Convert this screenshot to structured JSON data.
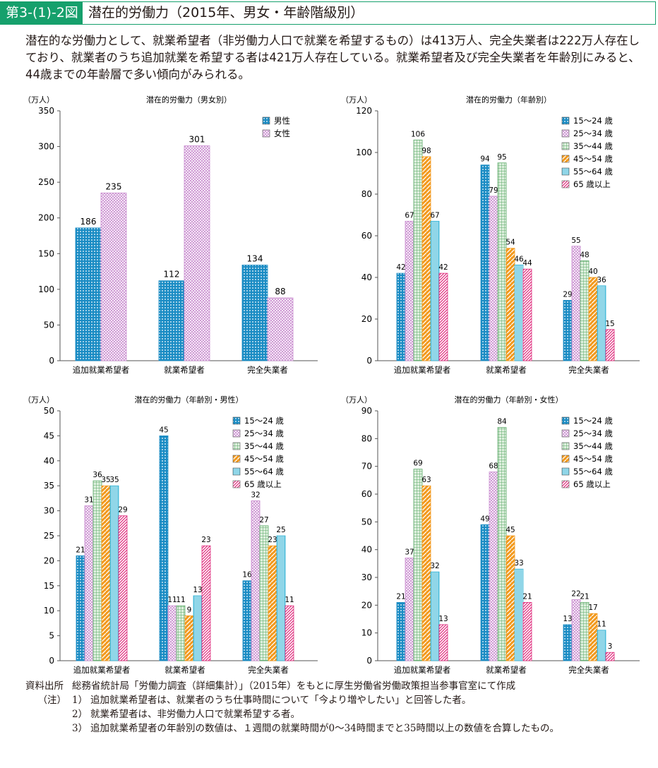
{
  "header": {
    "figure_number": "第3-(1)-2図",
    "title": "潜在的労働力（2015年、男女・年齢階級別）"
  },
  "summary": {
    "bullet": "○",
    "text": "潜在的な労働力として、就業希望者（非労働力人口で就業を希望するもの）は413万人、完全失業者は222万人存在しており、就業者のうち追加就業を希望する者は421万人存在している。就業希望者及び完全失業者を年齢別にみると、44歳までの年齢層で多い傾向がみられる。"
  },
  "chart_data": [
    {
      "type": "bar",
      "title": "潜在的労働力（男女別）",
      "ylabel": "（万人）",
      "ylim": [
        0,
        350
      ],
      "yticks": [
        0,
        50,
        100,
        150,
        200,
        250,
        300,
        350
      ],
      "categories": [
        "追加就業希望者",
        "就業希望者",
        "完全失業者"
      ],
      "series": [
        {
          "name": "男性",
          "values": [
            186,
            112,
            134
          ],
          "color": "#1b8cc4",
          "pattern": "dots"
        },
        {
          "name": "女性",
          "values": [
            235,
            301,
            88
          ],
          "color": "#c98bcf",
          "pattern": "cross"
        }
      ],
      "legend": "top-right"
    },
    {
      "type": "bar",
      "title": "潜在的労働力（年齢別）",
      "ylabel": "（万人）",
      "ylim": [
        0,
        120
      ],
      "yticks": [
        0,
        20,
        40,
        60,
        80,
        100,
        120
      ],
      "categories": [
        "追加就業希望者",
        "就業希望者",
        "完全失業者"
      ],
      "series": [
        {
          "name": "15～24 歳",
          "values": [
            42,
            94,
            29
          ],
          "color": "#1b8cc4",
          "pattern": "dots"
        },
        {
          "name": "25～34 歳",
          "values": [
            67,
            79,
            55
          ],
          "color": "#c98bcf",
          "pattern": "cross"
        },
        {
          "name": "35～44 歳",
          "values": [
            106,
            95,
            48
          ],
          "color": "#5daa6a",
          "pattern": "grid"
        },
        {
          "name": "45～54 歳",
          "values": [
            98,
            54,
            40
          ],
          "color": "#f39a1e",
          "pattern": "diag"
        },
        {
          "name": "55～64 歳",
          "values": [
            67,
            46,
            36
          ],
          "color": "#36b4d6",
          "pattern": "vert"
        },
        {
          "name": "65 歳以上",
          "values": [
            42,
            44,
            15
          ],
          "color": "#e0307f",
          "pattern": "stripe"
        }
      ],
      "legend": "top-right"
    },
    {
      "type": "bar",
      "title": "潜在的労働力（年齢別・男性）",
      "ylabel": "（万人）",
      "ylim": [
        0,
        50
      ],
      "yticks": [
        0,
        5,
        10,
        15,
        20,
        25,
        30,
        35,
        40,
        45,
        50
      ],
      "categories": [
        "追加就業希望者",
        "就業希望者",
        "完全失業者"
      ],
      "series": [
        {
          "name": "15～24 歳",
          "values": [
            21,
            45,
            16
          ],
          "color": "#1b8cc4",
          "pattern": "dots"
        },
        {
          "name": "25～34 歳",
          "values": [
            31,
            11,
            32
          ],
          "color": "#c98bcf",
          "pattern": "cross"
        },
        {
          "name": "35～44 歳",
          "values": [
            36,
            11,
            27
          ],
          "color": "#5daa6a",
          "pattern": "grid"
        },
        {
          "name": "45～54 歳",
          "values": [
            35,
            9,
            23
          ],
          "color": "#f39a1e",
          "pattern": "diag"
        },
        {
          "name": "55～64 歳",
          "values": [
            35,
            13,
            25
          ],
          "color": "#36b4d6",
          "pattern": "vert"
        },
        {
          "name": "65 歳以上",
          "values": [
            29,
            23,
            11
          ],
          "color": "#e0307f",
          "pattern": "stripe"
        }
      ],
      "legend": "top-right"
    },
    {
      "type": "bar",
      "title": "潜在的労働力（年齢別・女性）",
      "ylabel": "（万人）",
      "ylim": [
        0,
        90
      ],
      "yticks": [
        0,
        10,
        20,
        30,
        40,
        50,
        60,
        70,
        80,
        90
      ],
      "categories": [
        "追加就業希望者",
        "就業希望者",
        "完全失業者"
      ],
      "series": [
        {
          "name": "15～24 歳",
          "values": [
            21,
            49,
            13
          ],
          "color": "#1b8cc4",
          "pattern": "dots"
        },
        {
          "name": "25～34 歳",
          "values": [
            37,
            68,
            22
          ],
          "color": "#c98bcf",
          "pattern": "cross"
        },
        {
          "name": "35～44 歳",
          "values": [
            69,
            84,
            21
          ],
          "color": "#5daa6a",
          "pattern": "grid"
        },
        {
          "name": "45～54 歳",
          "values": [
            63,
            45,
            17
          ],
          "color": "#f39a1e",
          "pattern": "diag"
        },
        {
          "name": "55～64 歳",
          "values": [
            32,
            33,
            11
          ],
          "color": "#36b4d6",
          "pattern": "vert"
        },
        {
          "name": "65 歳以上",
          "values": [
            13,
            21,
            3
          ],
          "color": "#e0307f",
          "pattern": "stripe"
        }
      ],
      "legend": "top-right"
    }
  ],
  "notes": {
    "source_label": "資料出所",
    "source": "総務省統計局「労働力調査（詳細集計）」（2015年）をもとに厚生労働省労働政策担当参事官室にて作成",
    "notes_label": "（注）",
    "items": [
      {
        "num": "1）",
        "text": "追加就業希望者は、就業者のうち仕事時間について「今より増やしたい」と回答した者。"
      },
      {
        "num": "2）",
        "text": "就業希望者は、非労働力人口で就業希望する者。"
      },
      {
        "num": "3）",
        "text": "追加就業希望者の年齢別の数値は、１週間の就業時間が0～34時間までと35時間以上の数値を合算したもの。"
      }
    ]
  }
}
